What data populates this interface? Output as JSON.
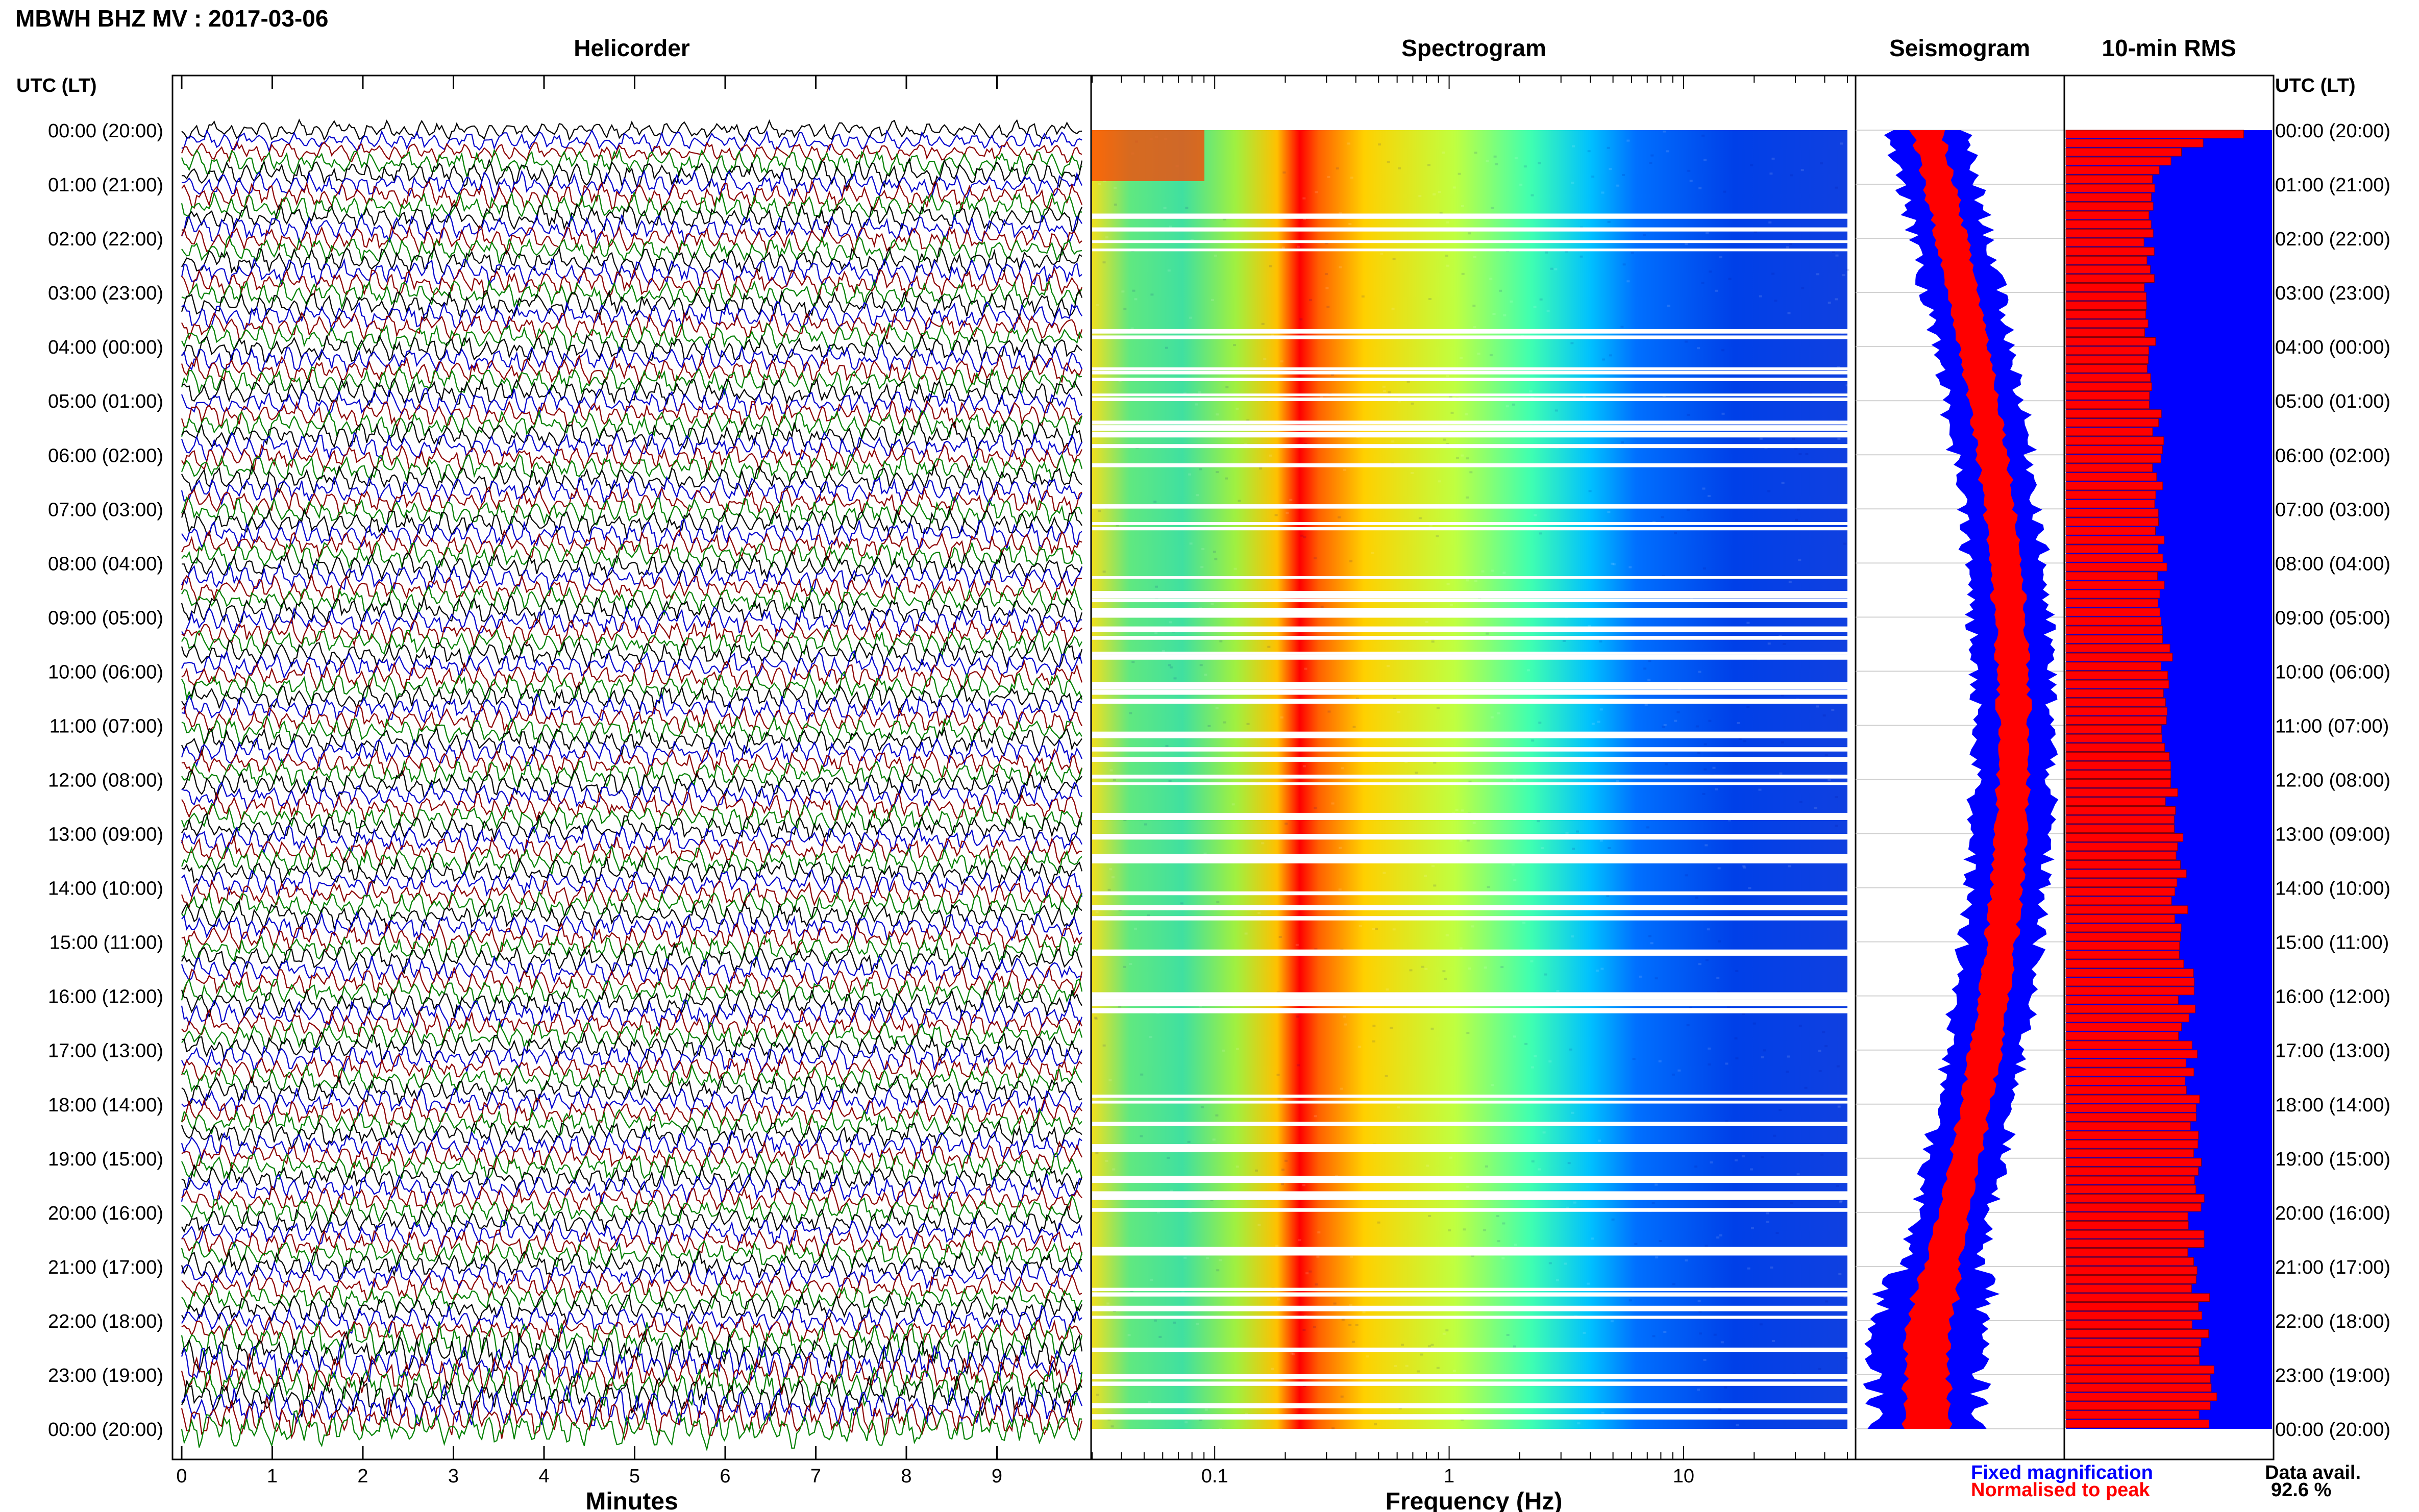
{
  "page": {
    "title": "MBWH BHZ MV : 2017-03-06",
    "time_axis_label_left": "UTC (LT)",
    "time_axis_label_right": "UTC (LT)",
    "time_ticks": [
      "00:00 (20:00)",
      "01:00 (21:00)",
      "02:00 (22:00)",
      "03:00 (23:00)",
      "04:00 (00:00)",
      "05:00 (01:00)",
      "06:00 (02:00)",
      "07:00 (03:00)",
      "08:00 (04:00)",
      "09:00 (05:00)",
      "10:00 (06:00)",
      "11:00 (07:00)",
      "12:00 (08:00)",
      "13:00 (09:00)",
      "14:00 (10:00)",
      "15:00 (11:00)",
      "16:00 (12:00)",
      "17:00 (13:00)",
      "18:00 (14:00)",
      "19:00 (15:00)",
      "20:00 (16:00)",
      "21:00 (17:00)",
      "22:00 (18:00)",
      "23:00 (19:00)",
      "00:00 (20:00)"
    ],
    "legend": {
      "fixed": "Fixed magnification",
      "fixed_color": "#0000ff",
      "normalised": "Normalised to peak",
      "normalised_color": "#ff0000"
    },
    "data_avail_label": "Data avail.",
    "data_avail_value": "92.6 %"
  },
  "chart_data": [
    {
      "type": "line",
      "panel": "helicorder",
      "title": "Helicorder",
      "xlabel": "Minutes",
      "x_ticks": [
        "0",
        "1",
        "2",
        "3",
        "4",
        "5",
        "6",
        "7",
        "8",
        "9"
      ],
      "xlim": [
        0,
        10
      ],
      "trace_colors": [
        "#000000",
        "#0000cc",
        "#8b0000",
        "#008000"
      ]
    },
    {
      "type": "heatmap",
      "panel": "spectrogram",
      "title": "Spectrogram",
      "xlabel": "Frequency (Hz)",
      "x_scale": "log",
      "x_ticks": [
        "0.1",
        "1",
        "10"
      ],
      "xlim": [
        0.03,
        50
      ],
      "peak_band_hz": [
        0.17,
        0.3
      ],
      "colormap": [
        "#0000ff",
        "#00a0ff",
        "#00ffc0",
        "#a0ff40",
        "#ffff00",
        "#ff8000",
        "#ff0000"
      ]
    },
    {
      "type": "area",
      "panel": "seismogram",
      "title": "Seismogram",
      "series": [
        {
          "name": "Fixed magnification",
          "color": "#0000ff"
        },
        {
          "name": "Normalised to peak",
          "color": "#ff0000"
        }
      ]
    },
    {
      "type": "bar",
      "panel": "rms",
      "title": "10-min RMS",
      "orientation": "horizontal",
      "background_color": "#0000ff",
      "bar_color": "#ff0000",
      "bar_edge_color": "#8b0000",
      "hourly_rms_relative": [
        0.62,
        0.42,
        0.4,
        0.4,
        0.41,
        0.43,
        0.45,
        0.46,
        0.47,
        0.48,
        0.49,
        0.5,
        0.51,
        0.53,
        0.55,
        0.57,
        0.58,
        0.6,
        0.61,
        0.62,
        0.63,
        0.64,
        0.66,
        0.7,
        0.64
      ]
    }
  ]
}
